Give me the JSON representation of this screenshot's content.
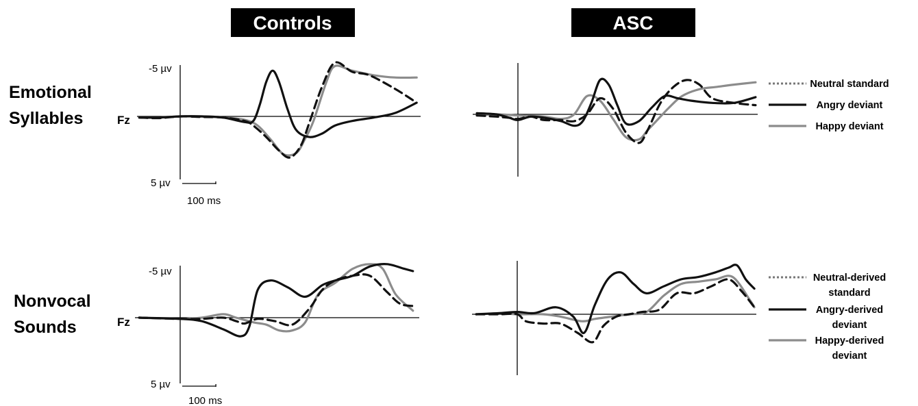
{
  "headers": {
    "left": "Controls",
    "right": "ASC"
  },
  "rows": [
    {
      "line1": "Emotional",
      "line2": "Syllables"
    },
    {
      "line1": "Nonvocal",
      "line2": "Sounds"
    }
  ],
  "electrode": "Fz",
  "scale": {
    "top": "-5 µv",
    "bottom": "5 µv",
    "time": "100 ms"
  },
  "colors": {
    "angry": "#111111",
    "happy": "#8c8c8c",
    "neutral": "#111111",
    "header_bg": "#000000"
  },
  "legends": {
    "top": [
      {
        "lines": [
          "Neutral standard"
        ],
        "style": "dotted-gray"
      },
      {
        "lines": [
          "Angry deviant"
        ],
        "style": "solid-black"
      },
      {
        "lines": [
          "Happy deviant"
        ],
        "style": "solid-gray"
      }
    ],
    "bottom": [
      {
        "lines": [
          "Neutral-derived",
          "standard"
        ],
        "style": "dotted-gray"
      },
      {
        "lines": [
          "Angry-derived",
          "deviant"
        ],
        "style": "solid-black"
      },
      {
        "lines": [
          "Happy-derived",
          "deviant"
        ],
        "style": "solid-gray"
      }
    ]
  },
  "chart_data": [
    {
      "type": "line",
      "id": "controls-syllables",
      "group": "Controls",
      "condition": "Emotional Syllables",
      "xlabel": "ms",
      "ylabel": "µV",
      "ylim": [
        5,
        -5
      ],
      "xlim": [
        -100,
        550
      ],
      "series": [
        {
          "name": "Neutral standard",
          "style": "dashed-black",
          "x": [
            -95,
            -50,
            0,
            50,
            100,
            150,
            170,
            200,
            230,
            255,
            280,
            300,
            330,
            360,
            400,
            440,
            500,
            550
          ],
          "y": [
            0.1,
            0.15,
            0.0,
            0.05,
            0.1,
            0.4,
            0.8,
            1.8,
            3.0,
            3.6,
            2.6,
            0.6,
            -2.6,
            -4.7,
            -3.9,
            -3.6,
            -2.4,
            -1.2
          ]
        },
        {
          "name": "Angry deviant",
          "style": "solid-black",
          "x": [
            -95,
            -50,
            0,
            50,
            100,
            150,
            170,
            185,
            200,
            215,
            230,
            250,
            270,
            300,
            330,
            360,
            400,
            450,
            500,
            550
          ],
          "y": [
            0.1,
            0.1,
            0.0,
            0.0,
            0.1,
            0.5,
            0.4,
            -1.0,
            -3.0,
            -4.0,
            -3.0,
            -0.6,
            1.2,
            1.8,
            1.5,
            0.8,
            0.4,
            0.1,
            -0.3,
            -1.2
          ]
        },
        {
          "name": "Happy deviant",
          "style": "solid-gray",
          "x": [
            -95,
            -50,
            0,
            50,
            100,
            150,
            180,
            210,
            240,
            270,
            290,
            310,
            340,
            360,
            400,
            450,
            500,
            550
          ],
          "y": [
            0.1,
            0.1,
            0.0,
            0.0,
            0.1,
            0.3,
            0.8,
            2.0,
            3.3,
            3.2,
            2.0,
            0.4,
            -3.0,
            -4.4,
            -4.0,
            -3.6,
            -3.4,
            -3.4
          ]
        }
      ]
    },
    {
      "type": "line",
      "id": "asc-syllables",
      "group": "ASC",
      "condition": "Emotional Syllables",
      "xlabel": "ms",
      "ylabel": "µV",
      "ylim": [
        5,
        -5
      ],
      "xlim": [
        -100,
        550
      ],
      "series": [
        {
          "name": "Neutral standard",
          "style": "dashed-black",
          "x": [
            -95,
            -50,
            -20,
            0,
            30,
            60,
            100,
            130,
            160,
            190,
            220,
            250,
            280,
            300,
            330,
            360,
            390,
            420,
            450,
            500,
            550
          ],
          "y": [
            0.1,
            0.2,
            0.3,
            0.4,
            0.2,
            0.5,
            0.5,
            0.6,
            0.0,
            -1.4,
            -0.5,
            1.6,
            2.5,
            1.4,
            -1.0,
            -2.4,
            -3.0,
            -2.6,
            -1.4,
            -1.0,
            -0.8
          ]
        },
        {
          "name": "Angry deviant",
          "style": "solid-black",
          "x": [
            -95,
            -50,
            -20,
            0,
            30,
            60,
            100,
            130,
            150,
            170,
            190,
            210,
            230,
            250,
            280,
            310,
            340,
            370,
            400,
            450,
            500,
            550
          ],
          "y": [
            -0.1,
            0.0,
            0.3,
            0.5,
            0.2,
            0.3,
            0.6,
            1.0,
            0.6,
            -1.0,
            -3.0,
            -2.6,
            -0.8,
            0.8,
            0.6,
            -0.6,
            -1.6,
            -1.4,
            -1.2,
            -1.0,
            -1.0,
            -1.5
          ]
        },
        {
          "name": "Happy deviant",
          "style": "solid-gray",
          "x": [
            -95,
            -50,
            0,
            60,
            100,
            130,
            160,
            190,
            220,
            250,
            280,
            300,
            320,
            350,
            380,
            420,
            460,
            500,
            550
          ],
          "y": [
            0.1,
            0.0,
            0.1,
            0.2,
            0.4,
            0.0,
            -1.6,
            -1.2,
            0.4,
            2.0,
            2.2,
            1.4,
            0.6,
            -0.6,
            -1.6,
            -2.2,
            -2.4,
            -2.6,
            -2.8
          ]
        }
      ]
    },
    {
      "type": "line",
      "id": "controls-nonvocal",
      "group": "Controls",
      "condition": "Nonvocal Sounds",
      "xlabel": "ms",
      "ylabel": "µV",
      "ylim": [
        5,
        -5
      ],
      "xlim": [
        -100,
        550
      ],
      "series": [
        {
          "name": "Neutral-derived standard",
          "style": "dashed-black",
          "x": [
            -95,
            0,
            50,
            100,
            130,
            150,
            180,
            220,
            260,
            300,
            330,
            360,
            400,
            440,
            480,
            510,
            540
          ],
          "y": [
            0.0,
            0.1,
            0.1,
            0.0,
            0.3,
            0.5,
            0.1,
            0.3,
            0.6,
            -0.8,
            -2.4,
            -3.2,
            -3.6,
            -3.6,
            -2.2,
            -1.2,
            -1.0
          ]
        },
        {
          "name": "Angry-derived deviant",
          "style": "solid-black",
          "x": [
            -95,
            0,
            50,
            100,
            140,
            160,
            180,
            210,
            250,
            290,
            330,
            360,
            400,
            440,
            480,
            520,
            540
          ],
          "y": [
            0.0,
            0.1,
            0.3,
            1.0,
            1.6,
            0.8,
            -2.4,
            -3.2,
            -2.6,
            -1.8,
            -2.8,
            -3.2,
            -3.6,
            -4.4,
            -4.6,
            -4.2,
            -4.0
          ]
        },
        {
          "name": "Happy-derived deviant",
          "style": "solid-gray",
          "x": [
            -95,
            0,
            50,
            100,
            130,
            170,
            200,
            230,
            260,
            290,
            320,
            360,
            400,
            440,
            470,
            500,
            540
          ],
          "y": [
            0.0,
            0.1,
            0.0,
            -0.3,
            0.0,
            0.4,
            0.6,
            1.1,
            1.1,
            0.4,
            -2.0,
            -3.0,
            -4.2,
            -4.6,
            -4.2,
            -2.0,
            -0.6
          ]
        }
      ]
    },
    {
      "type": "line",
      "id": "asc-nonvocal",
      "group": "ASC",
      "condition": "Nonvocal Sounds",
      "xlabel": "ms",
      "ylabel": "µV",
      "ylim": [
        5,
        -5
      ],
      "xlim": [
        -100,
        550
      ],
      "series": [
        {
          "name": "Neutral-derived standard",
          "style": "dashed-black",
          "x": [
            -95,
            -40,
            0,
            20,
            60,
            100,
            140,
            175,
            200,
            230,
            260,
            290,
            330,
            370,
            410,
            450,
            490,
            520,
            550
          ],
          "y": [
            0.0,
            0.0,
            0.0,
            0.6,
            0.8,
            0.8,
            1.6,
            2.4,
            1.0,
            0.2,
            0.0,
            -0.2,
            -0.4,
            -1.8,
            -1.8,
            -2.4,
            -3.0,
            -2.0,
            -0.6
          ]
        },
        {
          "name": "Angry-derived deviant",
          "style": "solid-black",
          "x": [
            -95,
            -40,
            0,
            40,
            90,
            130,
            155,
            180,
            210,
            240,
            270,
            300,
            340,
            380,
            420,
            460,
            490,
            510,
            530,
            550
          ],
          "y": [
            0.0,
            -0.1,
            -0.2,
            -0.1,
            -0.6,
            0.2,
            1.6,
            -0.8,
            -3.0,
            -3.6,
            -2.6,
            -1.8,
            -2.4,
            -3.0,
            -3.2,
            -3.6,
            -4.0,
            -4.2,
            -3.0,
            -2.2
          ]
        },
        {
          "name": "Happy-derived deviant",
          "style": "solid-gray",
          "x": [
            -95,
            -40,
            0,
            60,
            100,
            150,
            180,
            220,
            260,
            300,
            340,
            380,
            420,
            460,
            500,
            540,
            550
          ],
          "y": [
            0.0,
            -0.1,
            0.0,
            0.0,
            0.2,
            0.6,
            0.4,
            0.2,
            0.0,
            -0.2,
            -1.6,
            -2.6,
            -2.8,
            -3.0,
            -3.2,
            -1.2,
            -0.6
          ]
        }
      ]
    }
  ]
}
